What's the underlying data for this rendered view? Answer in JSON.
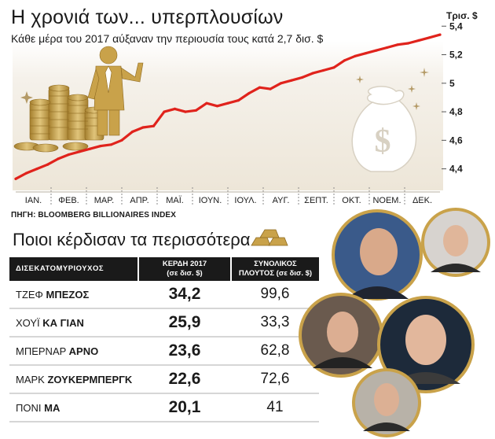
{
  "header": {
    "title": "Η χρονιά των... υπερπλουσίων",
    "subtitle": "Κάθε μέρα του 2017 αύξαναν την περιουσία τους κατά 2,7 δισ. $",
    "unit": "Τρισ. $"
  },
  "source": "ΠΗΓΗ: BLOOMBERG BILLIONAIRES INDEX",
  "section_title": "Ποιοι κέρδισαν τα περισσότερα",
  "table": {
    "headers": [
      "ΔΙΣΕΚΑΤΟΜΥΡΙΟΥΧΟΣ",
      "ΚΕΡΔΗ 2017",
      "(σε δισ. $)",
      "ΣΥΝΟΛΙΚΟΣ",
      "ΠΛΟΥΤΟΣ (σε δισ. $)"
    ],
    "rows": [
      {
        "first": "ΤΖΕΦ ",
        "last": "ΜΠΕΖΟΣ",
        "gain": "34,2",
        "wealth": "99,6"
      },
      {
        "first": "ΧΟΥΪ ",
        "last": "ΚΑ ΓΙΑΝ",
        "gain": "25,9",
        "wealth": "33,3"
      },
      {
        "first": "ΜΠΕΡΝΑΡ ",
        "last": "ΑΡΝΟ",
        "gain": "23,6",
        "wealth": "62,8"
      },
      {
        "first": "ΜΑΡΚ ",
        "last": "ΖΟΥΚΕΡΜΠΕΡΓΚ",
        "gain": "22,6",
        "wealth": "72,6"
      },
      {
        "first": "ΠΟΝΙ ",
        "last": "ΜΑ",
        "gain": "20,1",
        "wealth": "41"
      }
    ]
  },
  "colors": {
    "line": "#e0231c",
    "gold": "#c9a24a",
    "gold_dark": "#8f6b22",
    "panel": "#f1ece2",
    "table_header": "#1a1a1a"
  },
  "chart_data": {
    "type": "line",
    "title": "Η χρονιά των... υπερπλουσίων",
    "subtitle": "Κάθε μέρα του 2017 αύξαναν την περιουσία τους κατά 2,7 δισ. $",
    "unit": "Τρισ. $",
    "categories": [
      "ΙΑΝ.",
      "ΦΕΒ.",
      "ΜΑΡ.",
      "ΑΠΡ.",
      "ΜΑΪ.",
      "ΙΟΥΝ.",
      "ΙΟΥΛ.",
      "ΑΥΓ.",
      "ΣΕΠΤ.",
      "ΟΚΤ.",
      "ΝΟΕΜ.",
      "ΔΕΚ."
    ],
    "y_ticks": [
      "4,4",
      "4,6",
      "4,8",
      "5",
      "5,2",
      "5,4"
    ],
    "ylim": [
      4.26,
      5.44
    ],
    "x_range": [
      0,
      12
    ],
    "grid": false,
    "series": [
      {
        "x": [
          0.0,
          0.3,
          0.6,
          0.9,
          1.2,
          1.5,
          1.8,
          2.1,
          2.4,
          2.7,
          3.0,
          3.3,
          3.6,
          3.9,
          4.2,
          4.5,
          4.8,
          5.1,
          5.4,
          5.7,
          6.0,
          6.3,
          6.6,
          6.9,
          7.2,
          7.5,
          7.8,
          8.1,
          8.4,
          8.7,
          9.0,
          9.3,
          9.6,
          9.9,
          10.2,
          10.5,
          10.8,
          11.1,
          11.4,
          11.7,
          12.0
        ],
        "y": [
          4.33,
          4.37,
          4.4,
          4.43,
          4.47,
          4.5,
          4.52,
          4.54,
          4.56,
          4.57,
          4.6,
          4.66,
          4.69,
          4.7,
          4.8,
          4.82,
          4.8,
          4.81,
          4.86,
          4.84,
          4.86,
          4.88,
          4.93,
          4.97,
          4.96,
          5.0,
          5.02,
          5.04,
          5.07,
          5.09,
          5.11,
          5.16,
          5.19,
          5.21,
          5.23,
          5.25,
          5.27,
          5.28,
          5.3,
          5.32,
          5.34
        ]
      }
    ]
  }
}
